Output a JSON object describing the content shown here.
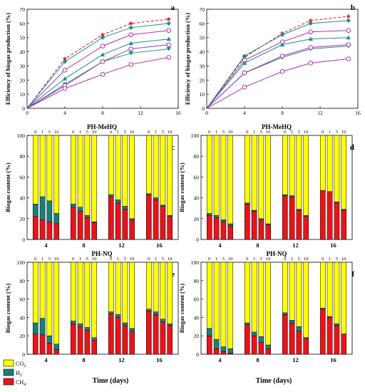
{
  "colors": {
    "co2": "#FFFF00",
    "h2": "#1B7F79",
    "ch4": "#E8141A",
    "red_dashed": "#E8141A",
    "teal": "#1B8F8C",
    "purple": "#B030B0"
  },
  "legend": [
    {
      "key": "co2",
      "label": "CO2"
    },
    {
      "key": "h2",
      "label": "H2"
    },
    {
      "key": "ch4",
      "label": "CH4"
    }
  ],
  "shared_xlabel": "Time (days)",
  "chart_data": [
    {
      "type": "line",
      "panel": "a",
      "ylabel": "Efficiency of biogas production (%)",
      "ylim": [
        0,
        70
      ],
      "yticks": [
        0,
        10,
        20,
        30,
        40,
        50,
        60,
        70
      ],
      "xlim": [
        0,
        16
      ],
      "xticks": [
        0,
        4,
        8,
        12,
        16
      ],
      "x": [
        0,
        4,
        8,
        11,
        15
      ],
      "series": [
        {
          "style": "red-dashed-star",
          "values": [
            0,
            35,
            52,
            60,
            63
          ]
        },
        {
          "style": "teal-diamond",
          "values": [
            0,
            33,
            50,
            57,
            60
          ]
        },
        {
          "style": "purple-circle",
          "values": [
            0,
            27,
            44,
            52,
            55
          ]
        },
        {
          "style": "teal-triangle",
          "values": [
            0,
            21,
            38,
            46,
            49
          ]
        },
        {
          "style": "teal-triangle-down",
          "values": [
            0,
            17,
            33,
            39,
            42
          ]
        },
        {
          "style": "purple-circle",
          "values": [
            0,
            16,
            33,
            42,
            45
          ]
        },
        {
          "style": "purple-circle",
          "values": [
            0,
            14,
            24,
            31,
            36
          ]
        }
      ]
    },
    {
      "type": "line",
      "panel": "b",
      "ylabel": "Efficiency of biogas production (%)",
      "ylim": [
        0,
        70
      ],
      "yticks": [
        0,
        10,
        20,
        30,
        40,
        50,
        60,
        70
      ],
      "xlim": [
        0,
        16
      ],
      "xticks": [
        0,
        4,
        8,
        12,
        16
      ],
      "x": [
        0,
        4,
        8,
        11,
        15
      ],
      "series": [
        {
          "style": "red-dashed-star",
          "values": [
            0,
            36,
            53,
            62,
            65
          ]
        },
        {
          "style": "teal-diamond",
          "values": [
            0,
            37,
            52,
            60,
            62
          ]
        },
        {
          "style": "purple-circle",
          "values": [
            0,
            34,
            47,
            54,
            55
          ]
        },
        {
          "style": "teal-triangle",
          "values": [
            0,
            32,
            45,
            49,
            50
          ]
        },
        {
          "style": "teal-triangle-down",
          "values": [
            0,
            25,
            36,
            42,
            44
          ]
        },
        {
          "style": "purple-circle",
          "values": [
            0,
            25,
            37,
            43,
            45
          ]
        },
        {
          "style": "purple-circle",
          "values": [
            0,
            15,
            26,
            32,
            35
          ]
        }
      ]
    },
    {
      "type": "bar",
      "panel": "c",
      "title": "PH-MeHQ",
      "ylabel": "Biogas content (%)",
      "ylim": [
        0,
        100
      ],
      "yticks": [
        0,
        20,
        40,
        60,
        80,
        100
      ],
      "day_labels": [
        "4",
        "8",
        "12",
        "16"
      ],
      "dose_labels": [
        "0",
        "1",
        "5",
        "10"
      ],
      "groups": [
        {
          "bars": [
            {
              "ch4": 22,
              "h2": 12
            },
            {
              "ch4": 19,
              "h2": 22
            },
            {
              "ch4": 17,
              "h2": 20
            },
            {
              "ch4": 15,
              "h2": 10
            }
          ]
        },
        {
          "bars": [
            {
              "ch4": 31,
              "h2": 3
            },
            {
              "ch4": 27,
              "h2": 4
            },
            {
              "ch4": 21,
              "h2": 2
            },
            {
              "ch4": 16,
              "h2": 1
            }
          ]
        },
        {
          "bars": [
            {
              "ch4": 41,
              "h2": 2
            },
            {
              "ch4": 35,
              "h2": 3
            },
            {
              "ch4": 29,
              "h2": 3
            },
            {
              "ch4": 19,
              "h2": 1
            }
          ]
        },
        {
          "bars": [
            {
              "ch4": 43,
              "h2": 1
            },
            {
              "ch4": 38,
              "h2": 2
            },
            {
              "ch4": 32,
              "h2": 1
            },
            {
              "ch4": 22,
              "h2": 1
            }
          ]
        }
      ]
    },
    {
      "type": "bar",
      "panel": "d",
      "title": "PH-MeHQ",
      "ylabel": "Biogas content (%)",
      "ylim": [
        0,
        100
      ],
      "yticks": [
        0,
        20,
        40,
        60,
        80,
        100
      ],
      "day_labels": [
        "4",
        "8",
        "12",
        "16"
      ],
      "dose_labels": [
        "0",
        "1",
        "5",
        "10"
      ],
      "groups": [
        {
          "bars": [
            {
              "ch4": 23,
              "h2": 2
            },
            {
              "ch4": 21,
              "h2": 2
            },
            {
              "ch4": 17,
              "h2": 2
            },
            {
              "ch4": 13,
              "h2": 2
            }
          ]
        },
        {
          "bars": [
            {
              "ch4": 34,
              "h2": 1
            },
            {
              "ch4": 27,
              "h2": 1
            },
            {
              "ch4": 19,
              "h2": 1
            },
            {
              "ch4": 14,
              "h2": 1
            }
          ]
        },
        {
          "bars": [
            {
              "ch4": 42,
              "h2": 1
            },
            {
              "ch4": 41,
              "h2": 1
            },
            {
              "ch4": 28,
              "h2": 1
            },
            {
              "ch4": 22,
              "h2": 1
            }
          ]
        },
        {
          "bars": [
            {
              "ch4": 47,
              "h2": 0
            },
            {
              "ch4": 46,
              "h2": 0
            },
            {
              "ch4": 35,
              "h2": 1
            },
            {
              "ch4": 28,
              "h2": 1
            }
          ]
        }
      ]
    },
    {
      "type": "bar",
      "panel": "e",
      "title": "PH-NQ",
      "ylabel": "Biogas content (%)",
      "ylim": [
        0,
        100
      ],
      "yticks": [
        0,
        20,
        40,
        60,
        80,
        100
      ],
      "day_labels": [
        "4",
        "8",
        "12",
        "16"
      ],
      "dose_labels": [
        "0",
        "1",
        "5",
        "10"
      ],
      "groups": [
        {
          "bars": [
            {
              "ch4": 22,
              "h2": 12
            },
            {
              "ch4": 21,
              "h2": 18
            },
            {
              "ch4": 12,
              "h2": 8
            },
            {
              "ch4": 5,
              "h2": 6
            }
          ]
        },
        {
          "bars": [
            {
              "ch4": 33,
              "h2": 3
            },
            {
              "ch4": 30,
              "h2": 3
            },
            {
              "ch4": 26,
              "h2": 3
            },
            {
              "ch4": 15,
              "h2": 3
            }
          ]
        },
        {
          "bars": [
            {
              "ch4": 44,
              "h2": 2
            },
            {
              "ch4": 40,
              "h2": 3
            },
            {
              "ch4": 31,
              "h2": 3
            },
            {
              "ch4": 25,
              "h2": 3
            }
          ]
        },
        {
          "bars": [
            {
              "ch4": 47,
              "h2": 2
            },
            {
              "ch4": 43,
              "h2": 3
            },
            {
              "ch4": 35,
              "h2": 3
            },
            {
              "ch4": 31,
              "h2": 2
            }
          ]
        }
      ]
    },
    {
      "type": "bar",
      "panel": "f",
      "title": "PH-NQ",
      "ylabel": "Biogas content (%)",
      "ylim": [
        0,
        100
      ],
      "yticks": [
        0,
        20,
        40,
        60,
        80,
        100
      ],
      "day_labels": [
        "4",
        "8",
        "12",
        "16"
      ],
      "dose_labels": [
        "0",
        "1",
        "5",
        "10"
      ],
      "groups": [
        {
          "bars": [
            {
              "ch4": 20,
              "h2": 8
            },
            {
              "ch4": 6,
              "h2": 10
            },
            {
              "ch4": 3,
              "h2": 5
            },
            {
              "ch4": 1,
              "h2": 5
            }
          ]
        },
        {
          "bars": [
            {
              "ch4": 32,
              "h2": 2
            },
            {
              "ch4": 20,
              "h2": 4
            },
            {
              "ch4": 13,
              "h2": 6
            },
            {
              "ch4": 6,
              "h2": 4
            }
          ]
        },
        {
          "bars": [
            {
              "ch4": 43,
              "h2": 2
            },
            {
              "ch4": 34,
              "h2": 3
            },
            {
              "ch4": 25,
              "h2": 5
            },
            {
              "ch4": 17,
              "h2": 1
            }
          ]
        },
        {
          "bars": [
            {
              "ch4": 49,
              "h2": 1
            },
            {
              "ch4": 40,
              "h2": 1
            },
            {
              "ch4": 31,
              "h2": 2
            },
            {
              "ch4": 22,
              "h2": 0
            }
          ]
        }
      ]
    }
  ]
}
